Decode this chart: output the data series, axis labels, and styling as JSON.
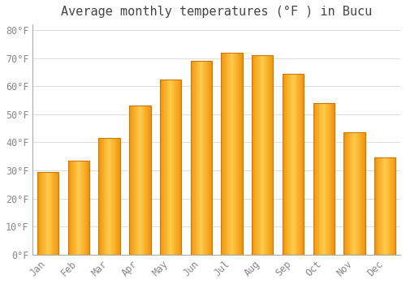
{
  "title": "Average monthly temperatures (°F ) in Bucu",
  "months": [
    "Jan",
    "Feb",
    "Mar",
    "Apr",
    "May",
    "Jun",
    "Jul",
    "Aug",
    "Sep",
    "Oct",
    "Nov",
    "Dec"
  ],
  "values": [
    29.5,
    33.5,
    41.5,
    53.0,
    62.5,
    69.0,
    72.0,
    71.0,
    64.5,
    54.0,
    43.5,
    34.5
  ],
  "bar_face_color": "#FFC04C",
  "bar_edge_color": "#CC7700",
  "background_color": "#FFFFFF",
  "plot_bg_color": "#FFFFFF",
  "grid_color": "#DDDDDD",
  "text_color": "#888888",
  "title_color": "#444444",
  "ylim": [
    0,
    82
  ],
  "yticks": [
    0,
    10,
    20,
    30,
    40,
    50,
    60,
    70,
    80
  ],
  "title_fontsize": 11,
  "tick_fontsize": 8.5,
  "bar_width": 0.7
}
